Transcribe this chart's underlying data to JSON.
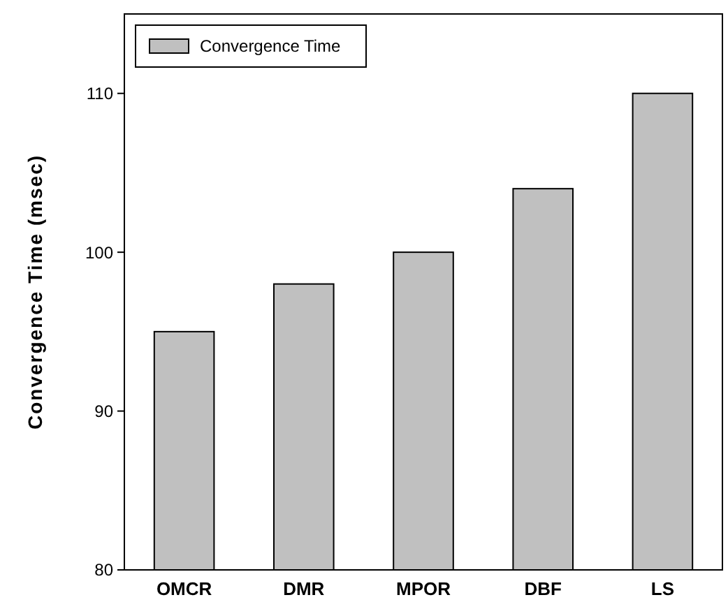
{
  "chart_data": {
    "type": "bar",
    "ylabel": "Convergence Time (msec)",
    "categories": [
      "OMCR",
      "DMR",
      "MPOR",
      "DBF",
      "LS"
    ],
    "series": [
      {
        "name": "Convergence Time",
        "color": "#c0c0c0",
        "values": [
          95,
          98,
          100,
          104,
          110
        ]
      }
    ],
    "ylim": [
      80,
      115
    ],
    "yticks": [
      80,
      90,
      100,
      110
    ],
    "grid": false,
    "legend": "top left"
  }
}
